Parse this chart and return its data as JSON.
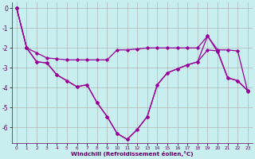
{
  "xlabel": "Windchill (Refroidissement éolien,°C)",
  "background_color": "#c8eef0",
  "line_color": "#990099",
  "grid_color": "#aaaaaa",
  "xlim": [
    -0.5,
    23.5
  ],
  "ylim": [
    -6.8,
    0.3
  ],
  "xticks": [
    0,
    1,
    2,
    3,
    4,
    5,
    6,
    7,
    8,
    9,
    10,
    11,
    12,
    13,
    14,
    15,
    16,
    17,
    18,
    19,
    20,
    21,
    22,
    23
  ],
  "yticks": [
    0,
    -1,
    -2,
    -3,
    -4,
    -5,
    -6
  ],
  "curve1_x": [
    0,
    1,
    2,
    3,
    4,
    5,
    6,
    7,
    8,
    9,
    10,
    11,
    12,
    13,
    14,
    15,
    16,
    17,
    18,
    19,
    20,
    21,
    22,
    23
  ],
  "curve1_y": [
    0,
    -2.0,
    -2.25,
    -2.5,
    -2.55,
    -2.6,
    -2.6,
    -2.6,
    -2.6,
    -2.6,
    -2.1,
    -2.1,
    -2.05,
    -2.0,
    -2.0,
    -2.0,
    -2.0,
    -2.0,
    -2.0,
    -1.4,
    -2.1,
    -2.1,
    -2.15,
    -4.2
  ],
  "curve2_x": [
    0,
    1,
    2,
    3,
    4,
    5,
    6,
    7,
    8,
    9,
    10,
    11,
    12,
    13,
    14,
    15,
    16,
    17,
    18,
    19,
    20,
    21,
    22,
    23
  ],
  "curve2_y": [
    0,
    -2.0,
    -2.7,
    -2.75,
    -3.35,
    -3.65,
    -3.95,
    -3.85,
    -4.75,
    -5.45,
    -6.3,
    -6.6,
    -6.1,
    -5.45,
    -3.85,
    -3.25,
    -3.05,
    -2.85,
    -2.7,
    -2.1,
    -2.15,
    -3.5,
    -3.65,
    -4.15
  ],
  "curve3_x": [
    0,
    1,
    2,
    3,
    4,
    5,
    6,
    7,
    8,
    9,
    10,
    11,
    12,
    13,
    14,
    15,
    16,
    17,
    18,
    19,
    20,
    21,
    22,
    23
  ],
  "curve3_y": [
    0,
    -2.0,
    -2.7,
    -2.75,
    -3.35,
    -3.65,
    -3.95,
    -3.85,
    -4.75,
    -5.45,
    -6.3,
    -6.6,
    -6.1,
    -5.45,
    -3.85,
    -3.25,
    -3.05,
    -2.85,
    -2.7,
    -1.4,
    -2.2,
    -3.5,
    -3.65,
    -4.15
  ]
}
